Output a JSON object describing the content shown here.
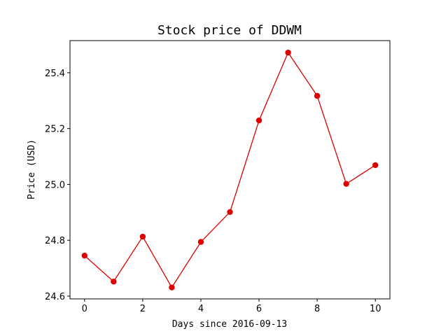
{
  "chart_data": {
    "type": "line",
    "title": "Stock price of DDWM",
    "xlabel": "Days since 2016-09-13",
    "ylabel": "Price (USD)",
    "x": [
      0,
      1,
      2,
      3,
      4,
      5,
      6,
      7,
      8,
      9,
      10
    ],
    "series": [
      {
        "values": [
          24.745,
          24.652,
          24.813,
          24.631,
          24.794,
          24.901,
          25.229,
          25.472,
          25.317,
          25.002,
          25.069
        ]
      }
    ],
    "xlim": [
      -0.5,
      10.5
    ],
    "ylim": [
      24.59,
      25.515
    ],
    "xticks": [
      "0",
      "2",
      "4",
      "6",
      "8",
      "10"
    ],
    "yticks": [
      "24.6",
      "24.8",
      "25.0",
      "25.2",
      "25.4"
    ],
    "grid": false,
    "colors": {
      "line": "#dd0000",
      "marker": "#dd0000",
      "axes": "#000000"
    }
  }
}
